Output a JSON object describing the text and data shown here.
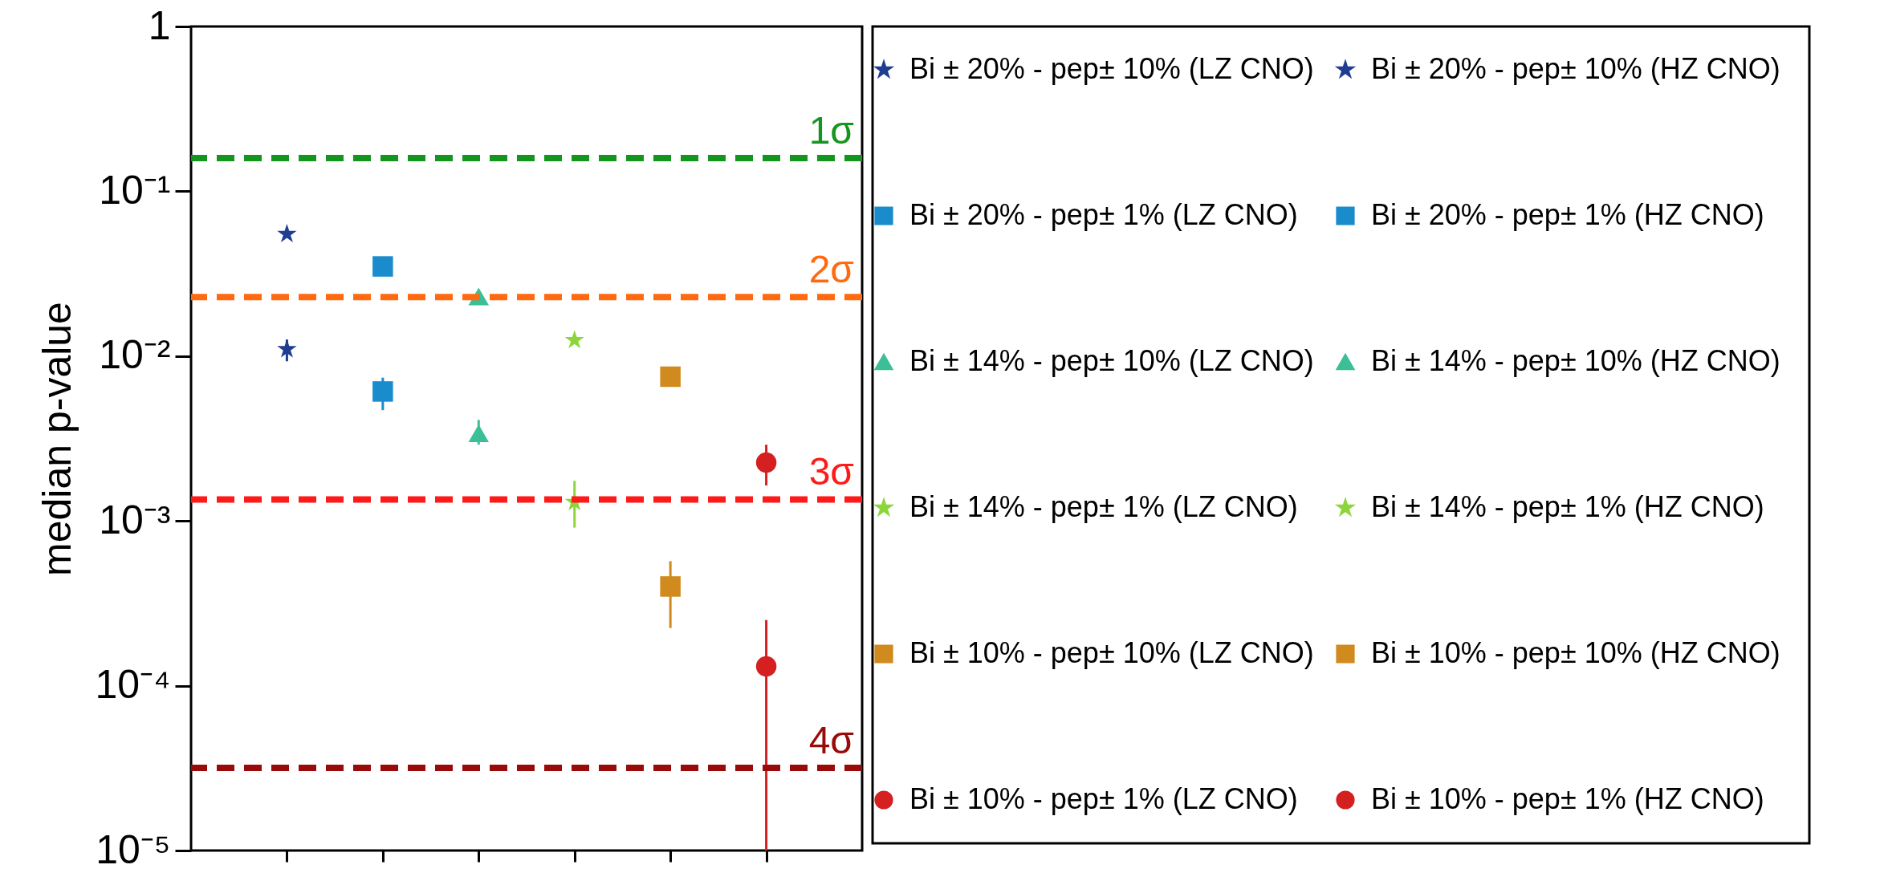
{
  "chart_data": {
    "type": "scatter",
    "ylabel": "median p-value",
    "categories": [
      null,
      null,
      null,
      null,
      null,
      null
    ],
    "log": true,
    "ylim": [
      1e-05,
      1
    ],
    "yticks": [
      {
        "value": 1e-05,
        "label": "10⁻⁵"
      },
      {
        "value": 0.0001,
        "label": "10⁻⁴"
      },
      {
        "value": 0.001,
        "label": "10⁻³"
      },
      {
        "value": 0.01,
        "label": "10⁻²"
      },
      {
        "value": 0.1,
        "label": "10⁻¹"
      },
      1
    ],
    "tick_labels": "y",
    "legend": "right",
    "ref_lines": [
      {
        "axis": "y",
        "value": 0.159,
        "label": "1σ",
        "color": "#14961e",
        "line_style": "dashed"
      },
      {
        "axis": "y",
        "value": 0.0228,
        "label": "2σ",
        "color": "#ff6a10",
        "line_style": "dashed"
      },
      {
        "axis": "y",
        "value": 0.00135,
        "label": "3σ",
        "color": "#ff1a1a",
        "line_style": "dashed"
      },
      {
        "axis": "y",
        "value": 3.17e-05,
        "label": "4σ",
        "color": "#990a0a",
        "line_style": "dashed"
      }
    ],
    "series": [
      {
        "name": "Bi ± 20% - pep± 10% (LZ CNO)",
        "color": "#1f3d91",
        "marker": "star",
        "values": [
          0.055,
          null,
          null,
          null,
          null,
          null
        ]
      },
      {
        "name": "Bi ± 20% - pep± 10% (HZ CNO)",
        "color": "#1f3d91",
        "marker": "star",
        "values": [
          0.011,
          null,
          null,
          null,
          null,
          null
        ],
        "errors": [
          [
            0.0093,
            0.0126
          ],
          null,
          null,
          null,
          null,
          null
        ]
      },
      {
        "name": "Bi ± 20% - pep± 1% (LZ CNO)",
        "color": "#1a8ccc",
        "marker": "square",
        "values": [
          null,
          0.035,
          null,
          null,
          null,
          null
        ]
      },
      {
        "name": "Bi ± 20% - pep± 1% (HZ CNO)",
        "color": "#1a8ccc",
        "marker": "square",
        "values": [
          null,
          0.0061,
          null,
          null,
          null,
          null
        ],
        "errors": [
          null,
          [
            0.0047,
            0.0074
          ],
          null,
          null,
          null,
          null
        ]
      },
      {
        "name": "Bi ± 14% - pep± 10% (LZ CNO)",
        "color": "#3cbf96",
        "marker": "triangle",
        "values": [
          null,
          null,
          0.023,
          null,
          null,
          null
        ]
      },
      {
        "name": "Bi ± 14% - pep± 10% (HZ CNO)",
        "color": "#3cbf96",
        "marker": "triangle",
        "values": [
          null,
          null,
          0.0034,
          null,
          null,
          null
        ],
        "errors": [
          null,
          null,
          [
            0.0029,
            0.0041
          ],
          null,
          null,
          null
        ]
      },
      {
        "name": "Bi ± 14% - pep± 1% (LZ CNO)",
        "color": "#8cd63c",
        "marker": "star",
        "values": [
          null,
          null,
          null,
          0.0125,
          null,
          null
        ]
      },
      {
        "name": "Bi ± 14% - pep± 1% (HZ CNO)",
        "color": "#8cd63c",
        "marker": "star",
        "values": [
          null,
          null,
          null,
          0.0013,
          null,
          null
        ],
        "errors": [
          null,
          null,
          null,
          [
            0.00091,
            0.00175
          ],
          null,
          null
        ]
      },
      {
        "name": "Bi ± 10% - pep± 10% (LZ CNO)",
        "color": "#d08a1e",
        "marker": "square",
        "values": [
          null,
          null,
          null,
          null,
          0.0075,
          null
        ]
      },
      {
        "name": "Bi ± 10% - pep± 10% (HZ CNO)",
        "color": "#d08a1e",
        "marker": "square",
        "values": [
          null,
          null,
          null,
          null,
          0.0004,
          null
        ],
        "errors": [
          null,
          null,
          null,
          null,
          [
            0.000224,
            0.00057
          ],
          null
        ]
      },
      {
        "name": "Bi ± 10% - pep± 1% (LZ CNO)",
        "color": "#d42020",
        "marker": "circle",
        "values": [
          null,
          null,
          null,
          null,
          null,
          0.00226
        ],
        "errors": [
          null,
          null,
          null,
          null,
          null,
          [
            0.00164,
            0.0029
          ]
        ]
      },
      {
        "name": "Bi ± 10% - pep± 1% (HZ CNO)",
        "color": "#d42020",
        "marker": "circle",
        "values": [
          null,
          null,
          null,
          null,
          null,
          0.000131
        ],
        "errors": [
          null,
          null,
          null,
          null,
          null,
          [
            1e-05,
            0.00025
          ]
        ]
      }
    ]
  }
}
